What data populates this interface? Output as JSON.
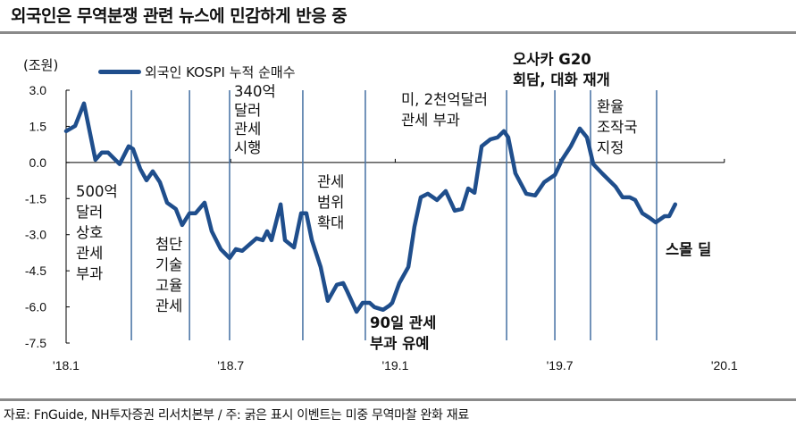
{
  "title": "외국인은 무역분쟁 관련 뉴스에 민감하게 반응 중",
  "footer": "자료: FnGuide, NH투자증권 리서치본부 / 주: 굵은 표시 이벤트는 미중 무역마찰 완화 재료",
  "chart_data": {
    "type": "line",
    "title": "외국인은 무역분쟁 관련 뉴스에 민감하게 반응 중",
    "ylabel": "(조원)",
    "xlabel": "",
    "ylim": [
      -7.5,
      3.0
    ],
    "yticks": [
      3.0,
      1.5,
      0.0,
      -1.5,
      -3.0,
      -4.5,
      -6.0,
      -7.5
    ],
    "ytick_labels": [
      "3.0",
      "1.5",
      "0.0",
      "-1.5",
      "-3.0",
      "-4.5",
      "-6.0",
      "-7.5"
    ],
    "x_unit": "months since Jan 2018",
    "xlim": [
      0,
      24
    ],
    "xticks": [
      0,
      6,
      12,
      18,
      24
    ],
    "xtick_labels": [
      "'18.1",
      "'18.7",
      "'19.1",
      "'19.7",
      "'20.1"
    ],
    "legend": "top-left",
    "series": [
      {
        "name": "외국인 KOSPI 누적 순매수",
        "color": "#1f4e8c",
        "x": [
          0,
          0.33,
          0.65,
          1.07,
          1.3,
          1.53,
          1.95,
          2.28,
          2.44,
          2.7,
          2.93,
          3.16,
          3.42,
          3.68,
          4.0,
          4.23,
          4.5,
          4.72,
          5.05,
          5.31,
          5.64,
          5.96,
          6.19,
          6.42,
          6.68,
          6.94,
          7.17,
          7.33,
          7.49,
          7.82,
          7.98,
          8.31,
          8.57,
          8.76,
          8.96,
          9.28,
          9.54,
          9.87,
          10.1,
          10.26,
          10.59,
          10.81,
          11.07,
          11.24,
          11.56,
          11.79,
          11.89,
          12.15,
          12.48,
          12.7,
          12.93,
          13.19,
          13.52,
          13.84,
          14.17,
          14.43,
          14.66,
          14.89,
          15.15,
          15.47,
          15.73,
          15.96,
          16.12,
          16.38,
          16.78,
          17.1,
          17.43,
          17.82,
          18.08,
          18.4,
          18.73,
          18.99,
          19.22,
          19.54,
          19.87,
          20.03,
          20.29,
          20.55,
          20.75,
          21.01,
          21.27,
          21.5,
          21.82,
          21.99,
          22.21
        ],
        "values": [
          1.3,
          1.52,
          2.45,
          0.11,
          0.41,
          0.41,
          -0.07,
          0.67,
          0.56,
          -0.26,
          -0.74,
          -0.37,
          -0.82,
          -1.67,
          -1.93,
          -2.6,
          -2.11,
          -2.11,
          -1.67,
          -2.86,
          -3.6,
          -3.97,
          -3.6,
          -3.67,
          -3.41,
          -3.15,
          -3.23,
          -2.86,
          -3.23,
          -1.74,
          -3.23,
          -3.53,
          -2.11,
          -2.11,
          -3.23,
          -4.34,
          -5.75,
          -5.08,
          -5.01,
          -5.38,
          -6.2,
          -5.83,
          -5.83,
          -6.01,
          -6.12,
          -5.94,
          -5.83,
          -5.01,
          -4.34,
          -2.67,
          -1.45,
          -1.3,
          -1.56,
          -1.19,
          -2.0,
          -1.93,
          -1.08,
          -1.26,
          0.67,
          0.96,
          1.04,
          1.3,
          1.04,
          -0.45,
          -1.3,
          -1.37,
          -0.82,
          -0.52,
          0.11,
          0.67,
          1.41,
          1.04,
          -0.07,
          -0.45,
          -0.82,
          -1.0,
          -1.45,
          -1.45,
          -1.56,
          -2.11,
          -2.3,
          -2.49,
          -2.23,
          -2.23,
          -1.74
        ]
      }
    ],
    "event_lines_x": [
      2.38,
      4.5,
      5.96,
      8.63,
      10.91,
      16.06,
      17.82,
      19.12,
      21.53
    ],
    "event_line_color": "#4f78a8",
    "annotations": [
      {
        "lines": [
          "500억",
          "달러",
          "상호",
          "관세",
          "부과"
        ],
        "bold": false
      },
      {
        "lines": [
          "첨단",
          "기술",
          "고율",
          "관세"
        ],
        "bold": false
      },
      {
        "lines": [
          "340억",
          "달러",
          "관세",
          "시행"
        ],
        "bold": false
      },
      {
        "lines": [
          "관세",
          "범위",
          "확대"
        ],
        "bold": false
      },
      {
        "lines": [
          "90일 관세",
          "부과 유예"
        ],
        "bold": true
      },
      {
        "lines": [
          "미, 2천억달러",
          "관세 부과"
        ],
        "bold": false
      },
      {
        "lines": [
          "오사카 G20",
          "회담, 대화 재개"
        ],
        "bold": true
      },
      {
        "lines": [
          "환율",
          "조작국",
          "지정"
        ],
        "bold": false
      },
      {
        "lines": [
          "스몰 딜"
        ],
        "bold": true
      }
    ]
  }
}
